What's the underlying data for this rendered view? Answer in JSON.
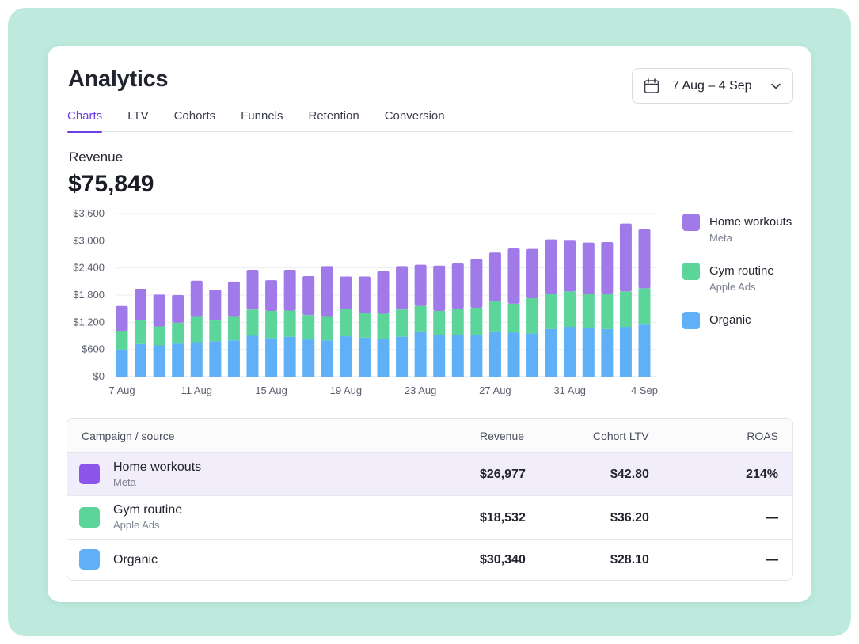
{
  "header": {
    "title": "Analytics",
    "date_range": "7 Aug – 4 Sep",
    "calendar_icon": "calendar-icon",
    "chevron_icon": "chevron-down-icon"
  },
  "tabs": [
    {
      "label": "Charts",
      "active": true
    },
    {
      "label": "LTV",
      "active": false
    },
    {
      "label": "Cohorts",
      "active": false
    },
    {
      "label": "Funnels",
      "active": false
    },
    {
      "label": "Retention",
      "active": false
    },
    {
      "label": "Conversion",
      "active": false
    }
  ],
  "metric": {
    "label": "Revenue",
    "value": "$75,849"
  },
  "colors": {
    "home_workouts": "#a07ae8",
    "gym_routine": "#5cd59b",
    "organic": "#5fb0f7",
    "accent": "#6d3ee3"
  },
  "legend": [
    {
      "name": "Home workouts",
      "sub": "Meta"
    },
    {
      "name": "Gym routine",
      "sub": "Apple Ads"
    },
    {
      "name": "Organic",
      "sub": ""
    }
  ],
  "chart_data": {
    "type": "bar",
    "stacked": true,
    "categories": [
      "7 Aug",
      "8 Aug",
      "9 Aug",
      "10 Aug",
      "11 Aug",
      "12 Aug",
      "13 Aug",
      "14 Aug",
      "15 Aug",
      "16 Aug",
      "17 Aug",
      "18 Aug",
      "19 Aug",
      "20 Aug",
      "21 Aug",
      "22 Aug",
      "23 Aug",
      "24 Aug",
      "25 Aug",
      "26 Aug",
      "27 Aug",
      "28 Aug",
      "29 Aug",
      "30 Aug",
      "31 Aug",
      "1 Sep",
      "2 Sep",
      "3 Sep",
      "4 Sep"
    ],
    "x_tick_labels": [
      "7 Aug",
      "11 Aug",
      "15 Aug",
      "19 Aug",
      "23 Aug",
      "27 Aug",
      "31 Aug",
      "4 Sep"
    ],
    "y_tick_labels": [
      "$0",
      "$600",
      "$1,200",
      "$1,800",
      "$2,400",
      "$3,000",
      "$3,600"
    ],
    "ylim": [
      0,
      3600
    ],
    "grid": true,
    "legend_position": "right",
    "series": [
      {
        "name": "Organic",
        "values": [
          600,
          720,
          690,
          730,
          760,
          780,
          800,
          900,
          850,
          880,
          820,
          800,
          890,
          860,
          830,
          880,
          980,
          920,
          920,
          920,
          980,
          970,
          950,
          1050,
          1100,
          1080,
          1050,
          1100,
          1150
        ]
      },
      {
        "name": "Gym routine",
        "values": [
          400,
          520,
          420,
          460,
          560,
          460,
          520,
          580,
          600,
          580,
          540,
          520,
          600,
          540,
          560,
          600,
          580,
          530,
          580,
          600,
          680,
          640,
          780,
          780,
          780,
          740,
          780,
          780,
          800
        ]
      },
      {
        "name": "Home workouts",
        "values": [
          560,
          700,
          700,
          610,
          800,
          680,
          780,
          880,
          680,
          900,
          860,
          1120,
          720,
          810,
          940,
          960,
          910,
          1000,
          1000,
          1080,
          1080,
          1220,
          1090,
          1200,
          1140,
          1140,
          1140,
          1500,
          1300
        ]
      }
    ]
  },
  "table": {
    "headers": {
      "campaign": "Campaign / source",
      "revenue": "Revenue",
      "ltv": "Cohort LTV",
      "roas": "ROAS"
    },
    "rows": [
      {
        "name": "Home workouts",
        "sub": "Meta",
        "revenue": "$26,977",
        "ltv": "$42.80",
        "roas": "214%",
        "selected": true
      },
      {
        "name": "Gym routine",
        "sub": "Apple Ads",
        "revenue": "$18,532",
        "ltv": "$36.20",
        "roas": "—",
        "selected": false
      },
      {
        "name": "Organic",
        "sub": "",
        "revenue": "$30,340",
        "ltv": "$28.10",
        "roas": "—",
        "selected": false
      }
    ]
  }
}
